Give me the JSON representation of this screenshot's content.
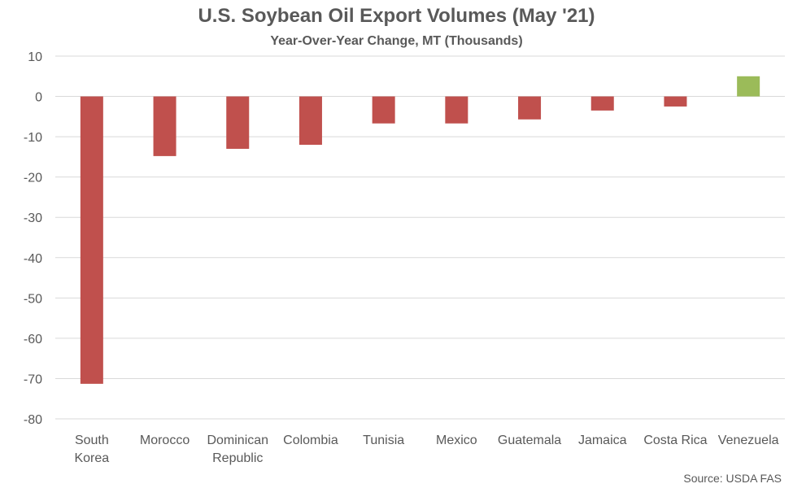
{
  "chart_data": {
    "type": "bar",
    "title": "U.S. Soybean Oil Export Volumes (May '21)",
    "subtitle": "Year-Over-Year Change, MT (Thousands)",
    "source": "Source: USDA FAS",
    "categories": [
      "South Korea",
      "Morocco",
      "Dominican Republic",
      "Colombia",
      "Tunisia",
      "Mexico",
      "Guatemala",
      "Jamaica",
      "Costa Rica",
      "Venezuela"
    ],
    "category_lines": [
      [
        "South",
        "Korea"
      ],
      [
        "Morocco"
      ],
      [
        "Dominican",
        "Republic"
      ],
      [
        "Colombia"
      ],
      [
        "Tunisia"
      ],
      [
        "Mexico"
      ],
      [
        "Guatemala"
      ],
      [
        "Jamaica"
      ],
      [
        "Costa Rica"
      ],
      [
        "Venezuela"
      ]
    ],
    "values": [
      -71.3,
      -14.8,
      -13.0,
      -12.0,
      -6.7,
      -6.7,
      -5.7,
      -3.5,
      -2.5,
      5.0
    ],
    "ylim": [
      -80,
      10
    ],
    "yticks": [
      10,
      0,
      -10,
      -20,
      -30,
      -40,
      -50,
      -60,
      -70,
      -80
    ],
    "grid": true,
    "legend": "none",
    "colors": {
      "negative": "#c0504d",
      "positive": "#9bbb59",
      "grid": "#d9d9d9",
      "text": "#595959"
    }
  }
}
